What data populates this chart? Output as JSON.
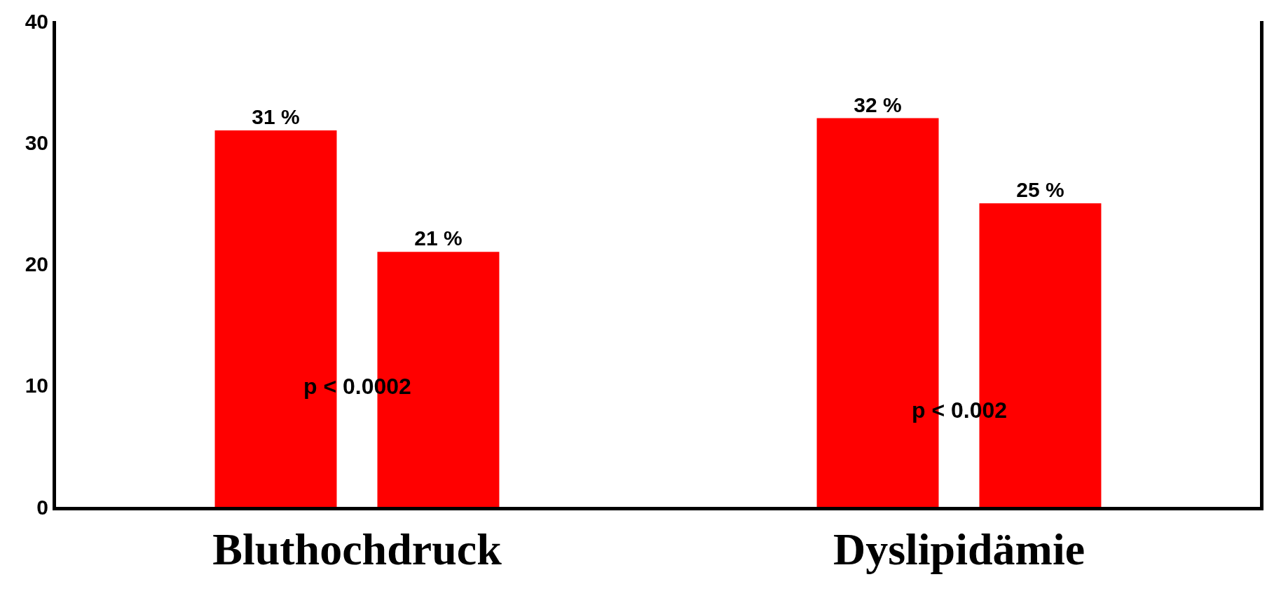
{
  "chart_data": {
    "type": "bar",
    "categories": [
      "Bluthochdruck",
      "Dyslipidämie"
    ],
    "series": [
      {
        "color": "#ff0000",
        "values": [
          31,
          32
        ],
        "value_labels": [
          "31 %",
          "32 %"
        ]
      },
      {
        "color": "#ff0000",
        "values": [
          21,
          25
        ],
        "value_labels": [
          "21 %",
          "25 %"
        ]
      }
    ],
    "ylim": [
      0,
      40
    ],
    "yticks": [
      0,
      10,
      20,
      30,
      40
    ],
    "legend": false,
    "annotations": [
      "p < 0.0002",
      "p < 0.002"
    ]
  }
}
